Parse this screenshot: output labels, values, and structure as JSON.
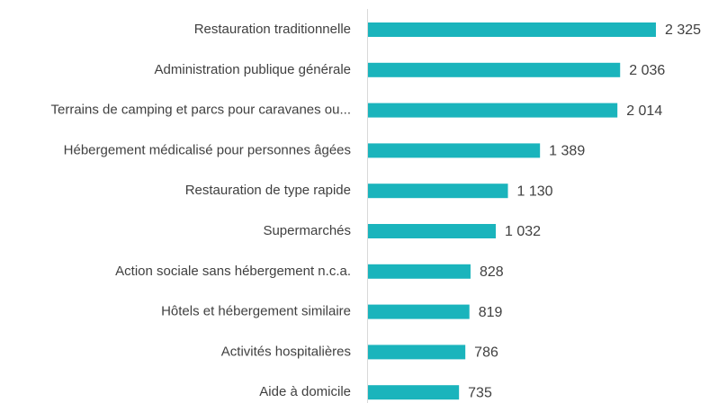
{
  "chart_data": {
    "type": "bar",
    "orientation": "horizontal",
    "categories": [
      "Restauration traditionnelle",
      "Administration publique générale",
      "Terrains de camping et parcs pour caravanes ou...",
      "Hébergement médicalisé pour personnes âgées",
      "Restauration de type rapide",
      "Supermarchés",
      "Action sociale sans hébergement n.c.a.",
      "Hôtels et hébergement similaire",
      "Activités hospitalières",
      "Aide à domicile"
    ],
    "values": [
      2325,
      2036,
      2014,
      1389,
      1130,
      1032,
      828,
      819,
      786,
      735
    ],
    "value_labels": [
      "2 325",
      "2 036",
      "2 014",
      "1 389",
      "1 130",
      "1 032",
      "828",
      "819",
      "786",
      "735"
    ],
    "color": "#1ab4bc"
  }
}
